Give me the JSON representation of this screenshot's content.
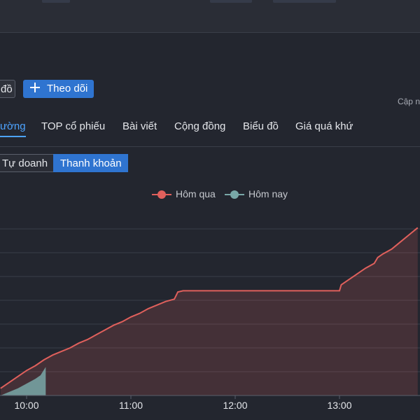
{
  "top_buttons": {
    "left_label": "đồ",
    "follow_label": "Theo dõi",
    "updated_label": "Cập n"
  },
  "tabs": [
    {
      "label": "ường",
      "active": true
    },
    {
      "label": "TOP cổ phiếu"
    },
    {
      "label": "Bài viết"
    },
    {
      "label": "Cộng đồng"
    },
    {
      "label": "Biểu đồ"
    },
    {
      "label": "Giá quá khứ"
    }
  ],
  "segments": [
    {
      "label": "Tự doanh",
      "active": false
    },
    {
      "label": "Thanh khoản",
      "active": true
    }
  ],
  "colors": {
    "yesterday": "#e0605c",
    "today": "#79a8a8",
    "accent": "#2f74d0",
    "active_tab": "#4da3ff"
  },
  "chart_data": {
    "type": "area",
    "x_ticks": [
      "10:00",
      "11:00",
      "12:00",
      "13:00"
    ],
    "series": [
      {
        "name": "Hôm qua",
        "points": [
          [
            "09:45",
            0.3
          ],
          [
            "09:50",
            0.55
          ],
          [
            "09:55",
            0.8
          ],
          [
            "10:00",
            1.05
          ],
          [
            "10:05",
            1.25
          ],
          [
            "10:10",
            1.5
          ],
          [
            "10:15",
            1.7
          ],
          [
            "10:20",
            1.85
          ],
          [
            "10:25",
            2.0
          ],
          [
            "10:30",
            2.2
          ],
          [
            "10:35",
            2.35
          ],
          [
            "10:40",
            2.55
          ],
          [
            "10:45",
            2.75
          ],
          [
            "10:50",
            2.95
          ],
          [
            "10:55",
            3.1
          ],
          [
            "11:00",
            3.3
          ],
          [
            "11:05",
            3.45
          ],
          [
            "11:10",
            3.65
          ],
          [
            "11:15",
            3.8
          ],
          [
            "11:20",
            3.95
          ],
          [
            "11:25",
            4.05
          ],
          [
            "11:27",
            4.35
          ],
          [
            "11:30",
            4.4
          ],
          [
            "13:00",
            4.4
          ],
          [
            "13:01",
            4.65
          ],
          [
            "13:05",
            4.85
          ],
          [
            "13:10",
            5.1
          ],
          [
            "13:15",
            5.35
          ],
          [
            "13:20",
            5.55
          ],
          [
            "13:22",
            5.8
          ],
          [
            "13:25",
            5.95
          ],
          [
            "13:30",
            6.15
          ],
          [
            "13:35",
            6.45
          ],
          [
            "13:40",
            6.75
          ],
          [
            "13:45",
            7.05
          ]
        ]
      },
      {
        "name": "Hôm nay",
        "points": [
          [
            "09:45",
            0.0
          ],
          [
            "09:50",
            0.15
          ],
          [
            "09:55",
            0.3
          ],
          [
            "10:00",
            0.5
          ],
          [
            "10:05",
            0.7
          ],
          [
            "10:08",
            0.85
          ],
          [
            "10:11",
            1.2
          ],
          [
            "10:11",
            0.0
          ]
        ]
      }
    ]
  }
}
